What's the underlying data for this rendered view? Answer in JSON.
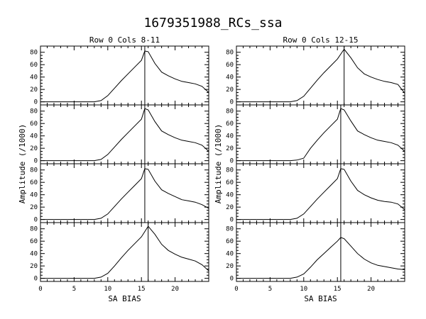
{
  "title": "1679351988_RCs_ssa",
  "shared_xlabel": "SA BIAS",
  "shared_ylabel": "Amplitude (/1000)",
  "chart_data": [
    {
      "type": "line",
      "title": "Row  0  Cols  8-11",
      "xlabel": "SA BIAS",
      "ylabel": "Amplitude (/1000)",
      "xlim": [
        0,
        25
      ],
      "ylim": [
        -5,
        90
      ],
      "xticks": [
        0,
        5,
        10,
        15,
        20
      ],
      "yticks": [
        0,
        20,
        40,
        60,
        80
      ],
      "panels": [
        {
          "peak_x": 15.5,
          "x": [
            0,
            8,
            9,
            10,
            11,
            12,
            13,
            14,
            15,
            15.5,
            16,
            17,
            18,
            19,
            20,
            21,
            22,
            23,
            24,
            25
          ],
          "y": [
            0,
            0,
            2,
            10,
            22,
            34,
            45,
            56,
            67,
            82,
            81,
            62,
            48,
            42,
            37,
            33,
            31,
            29,
            25,
            15
          ]
        },
        {
          "peak_x": 15.5,
          "x": [
            0,
            8,
            9,
            10,
            11,
            12,
            13,
            14,
            15,
            15.5,
            16,
            17,
            18,
            19,
            20,
            21,
            22,
            23,
            24,
            25
          ],
          "y": [
            0,
            0,
            2,
            10,
            22,
            34,
            45,
            56,
            67,
            84,
            82,
            63,
            48,
            42,
            37,
            33,
            31,
            29,
            25,
            15
          ]
        },
        {
          "peak_x": 15.5,
          "x": [
            0,
            8,
            9,
            10,
            11,
            12,
            13,
            14,
            15,
            15.5,
            16,
            17,
            18,
            19,
            20,
            21,
            22,
            23,
            24,
            25
          ],
          "y": [
            0,
            0,
            2,
            9,
            21,
            33,
            44,
            55,
            66,
            82,
            81,
            62,
            48,
            42,
            37,
            32,
            30,
            28,
            24,
            18
          ]
        },
        {
          "peak_x": 16,
          "x": [
            0,
            8,
            9,
            10,
            11,
            12,
            13,
            14,
            15,
            16,
            17,
            18,
            19,
            20,
            21,
            22,
            23,
            24,
            25
          ],
          "y": [
            0,
            0,
            2,
            8,
            20,
            33,
            45,
            56,
            67,
            84,
            71,
            55,
            45,
            39,
            34,
            31,
            28,
            22,
            12
          ]
        }
      ]
    },
    {
      "type": "line",
      "title": "Row  0  Cols 12-15",
      "xlabel": "SA BIAS",
      "ylabel": "Amplitude (/1000)",
      "xlim": [
        0,
        25
      ],
      "ylim": [
        -5,
        90
      ],
      "xticks": [
        0,
        5,
        10,
        15,
        20
      ],
      "yticks": [
        0,
        20,
        40,
        60,
        80
      ],
      "panels": [
        {
          "peak_x": 16,
          "x": [
            0,
            8,
            9,
            10,
            11,
            12,
            13,
            14,
            15,
            16,
            17,
            18,
            19,
            20,
            21,
            22,
            23,
            24,
            25
          ],
          "y": [
            0,
            0,
            2,
            9,
            22,
            35,
            47,
            58,
            69,
            85,
            71,
            55,
            45,
            40,
            36,
            33,
            31,
            28,
            14
          ]
        },
        {
          "peak_x": 15.5,
          "x": [
            0,
            8,
            9,
            10,
            11,
            12,
            13,
            14,
            15,
            15.5,
            16,
            17,
            18,
            19,
            20,
            21,
            22,
            23,
            24,
            25
          ],
          "y": [
            0,
            0,
            1,
            4,
            20,
            33,
            45,
            56,
            67,
            84,
            82,
            64,
            48,
            42,
            37,
            33,
            31,
            29,
            25,
            15
          ]
        },
        {
          "peak_x": 15.5,
          "x": [
            0,
            8,
            9,
            10,
            11,
            12,
            13,
            14,
            15,
            15.5,
            16,
            17,
            18,
            19,
            20,
            21,
            22,
            23,
            24,
            25
          ],
          "y": [
            0,
            0,
            2,
            9,
            21,
            33,
            44,
            55,
            66,
            82,
            81,
            62,
            47,
            40,
            35,
            31,
            29,
            28,
            25,
            16
          ]
        },
        {
          "peak_x": 15.5,
          "x": [
            0,
            8,
            9,
            10,
            11,
            12,
            13,
            14,
            15,
            15.5,
            16,
            17,
            18,
            19,
            20,
            21,
            22,
            23,
            24,
            25
          ],
          "y": [
            0,
            0,
            2,
            7,
            18,
            30,
            40,
            50,
            60,
            66,
            64,
            52,
            40,
            31,
            25,
            21,
            19,
            17,
            15,
            14
          ]
        }
      ]
    }
  ]
}
